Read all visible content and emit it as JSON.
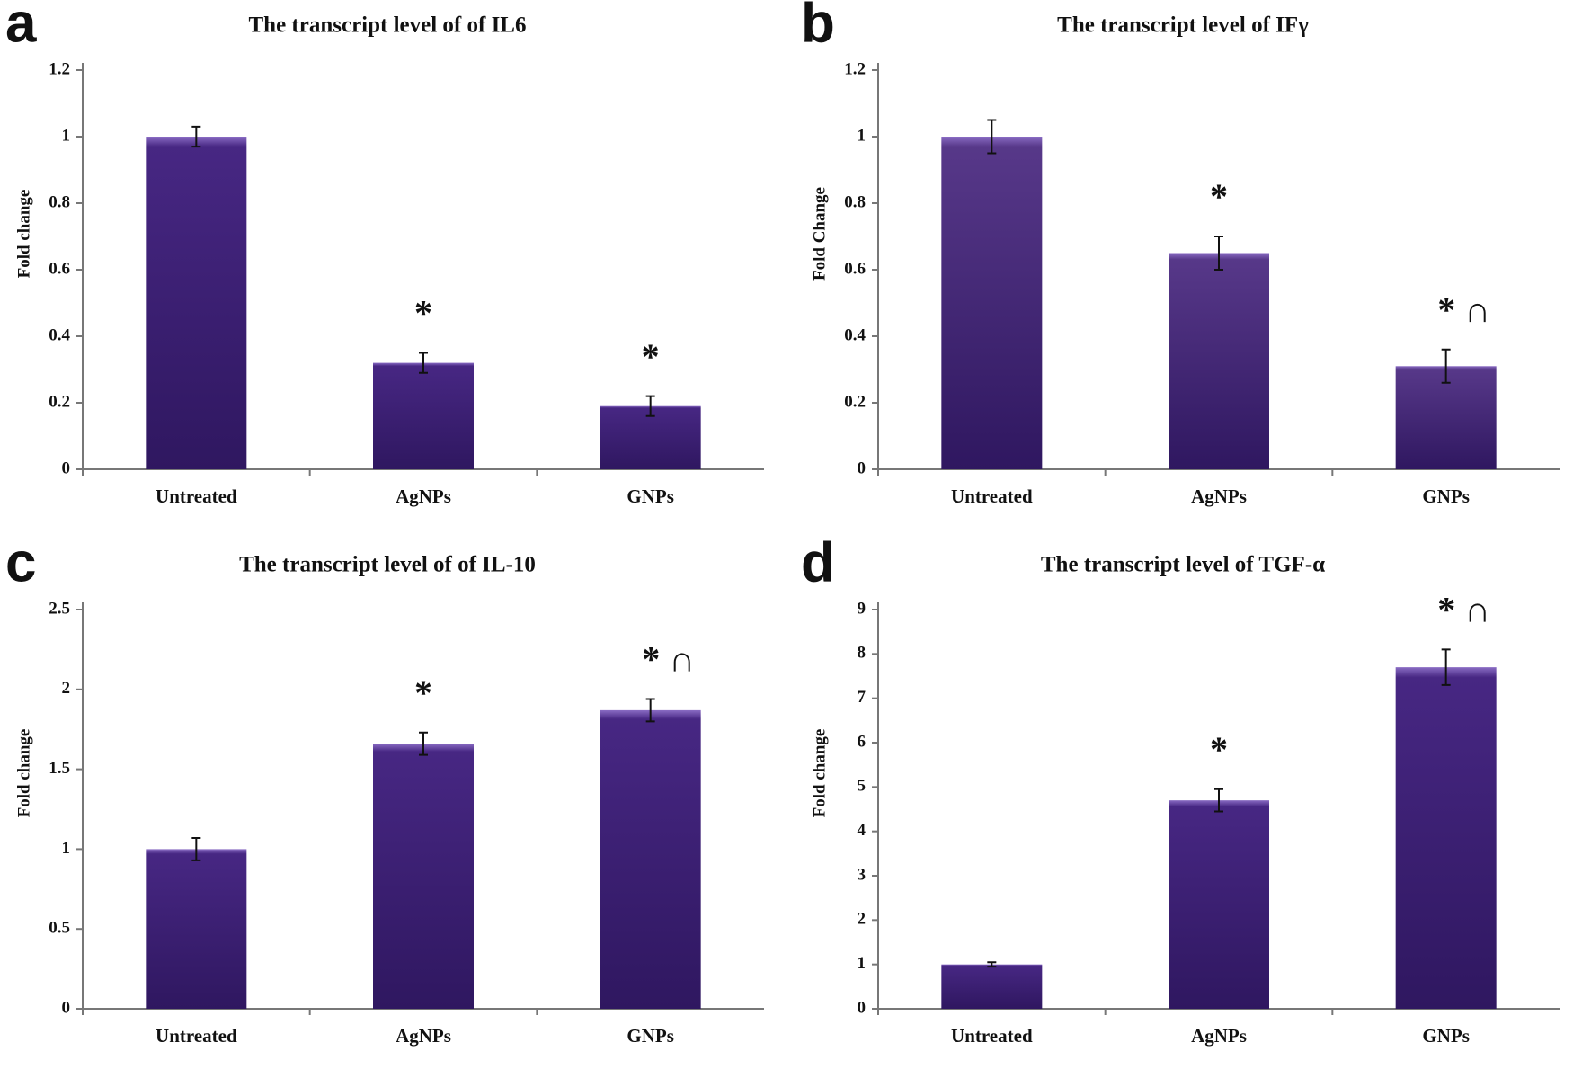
{
  "chart_data": [
    {
      "type": "bar",
      "panel": "a",
      "title": "The transcript level of of IL6",
      "ylabel": "Fold change",
      "categories": [
        "Untreated",
        "AgNPs",
        "GNPs"
      ],
      "values": [
        1.0,
        0.32,
        0.19
      ],
      "errors": [
        0.03,
        0.03,
        0.03
      ],
      "annotations": [
        null,
        "*",
        "*"
      ],
      "color": "#472783",
      "ylim": [
        0,
        1.2
      ],
      "yticks": [
        0,
        0.2,
        0.4,
        0.6,
        0.8,
        1,
        1.2
      ]
    },
    {
      "type": "bar",
      "panel": "b",
      "title": "The transcript level of IFγ",
      "ylabel": "Fold Change",
      "categories": [
        "Untreated",
        "AgNPs",
        "GNPs"
      ],
      "values": [
        1.0,
        0.65,
        0.31
      ],
      "errors": [
        0.05,
        0.05,
        0.05
      ],
      "annotations": [
        null,
        "*",
        "* ∩"
      ],
      "color": "#573889",
      "ylim": [
        0,
        1.2
      ],
      "yticks": [
        0,
        0.2,
        0.4,
        0.6,
        0.8,
        1,
        1.2
      ]
    },
    {
      "type": "bar",
      "panel": "c",
      "title": "The transcript level of of IL-10",
      "ylabel": "Fold change",
      "categories": [
        "Untreated",
        "AgNPs",
        "GNPs"
      ],
      "values": [
        1.0,
        1.66,
        1.87
      ],
      "errors": [
        0.07,
        0.07,
        0.07
      ],
      "annotations": [
        null,
        "*",
        "* ∩"
      ],
      "color": "#472783",
      "ylim": [
        0,
        2.5
      ],
      "yticks": [
        0,
        0.5,
        1,
        1.5,
        2,
        2.5
      ]
    },
    {
      "type": "bar",
      "panel": "d",
      "title": "The transcript level of TGF-α",
      "ylabel": "Fold change",
      "categories": [
        "Untreated",
        "AgNPs",
        "GNPs"
      ],
      "values": [
        1.0,
        4.7,
        7.7
      ],
      "errors": [
        0.05,
        0.25,
        0.4
      ],
      "annotations": [
        null,
        "*",
        "* ∩"
      ],
      "color": "#472783",
      "ylim": [
        0,
        9
      ],
      "yticks": [
        0,
        1,
        2,
        3,
        4,
        5,
        6,
        7,
        8,
        9
      ]
    }
  ]
}
